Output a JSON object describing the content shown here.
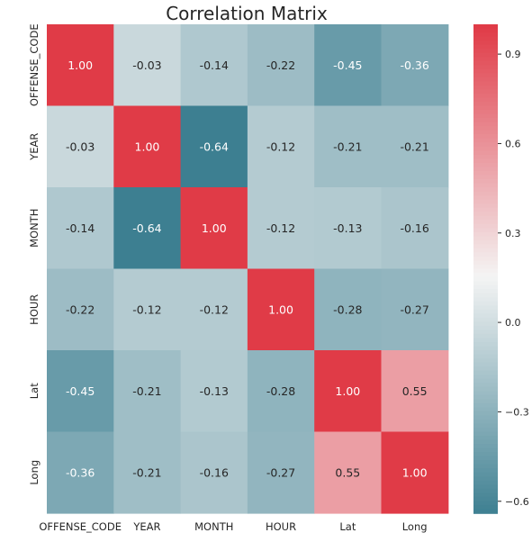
{
  "chart_data": {
    "type": "heatmap",
    "title": "Correlation Matrix",
    "xlabel": "",
    "ylabel": "",
    "x_categories": [
      "OFFENSE_CODE",
      "YEAR",
      "MONTH",
      "HOUR",
      "Lat",
      "Long"
    ],
    "y_categories": [
      "OFFENSE_CODE",
      "YEAR",
      "MONTH",
      "HOUR",
      "Lat",
      "Long"
    ],
    "values": [
      [
        1.0,
        -0.03,
        -0.14,
        -0.22,
        -0.45,
        -0.36
      ],
      [
        -0.03,
        1.0,
        -0.64,
        -0.12,
        -0.21,
        -0.21
      ],
      [
        -0.14,
        -0.64,
        1.0,
        -0.12,
        -0.13,
        -0.16
      ],
      [
        -0.22,
        -0.12,
        -0.12,
        1.0,
        -0.28,
        -0.27
      ],
      [
        -0.45,
        -0.21,
        -0.13,
        -0.28,
        1.0,
        0.55
      ],
      [
        -0.36,
        -0.21,
        -0.16,
        -0.27,
        0.55,
        1.0
      ]
    ],
    "cell_labels": [
      [
        "1.00",
        "-0.03",
        "-0.14",
        "-0.22",
        "-0.45",
        "-0.36"
      ],
      [
        "-0.03",
        "1.00",
        "-0.64",
        "-0.12",
        "-0.21",
        "-0.21"
      ],
      [
        "-0.14",
        "-0.64",
        "1.00",
        "-0.12",
        "-0.13",
        "-0.16"
      ],
      [
        "-0.22",
        "-0.12",
        "-0.12",
        "1.00",
        "-0.28",
        "-0.27"
      ],
      [
        "-0.45",
        "-0.21",
        "-0.13",
        "-0.28",
        "1.00",
        "0.55"
      ],
      [
        "-0.36",
        "-0.21",
        "-0.16",
        "-0.27",
        "0.55",
        "1.00"
      ]
    ],
    "colorbar": {
      "vmin": -0.64,
      "vmax": 1.0,
      "center": 0.16,
      "ticks": [
        0.9,
        0.6,
        0.3,
        0.0,
        -0.3,
        -0.6
      ],
      "tick_labels": [
        "0.9",
        "0.6",
        "0.3",
        "0.0",
        "−0.3",
        "−0.6"
      ]
    },
    "colors": {
      "low": "#3d7f91",
      "mid": "#f4f4f4",
      "high": "#e03b47",
      "annotation_text": "#ffffff",
      "axis_text": "#262626"
    }
  }
}
